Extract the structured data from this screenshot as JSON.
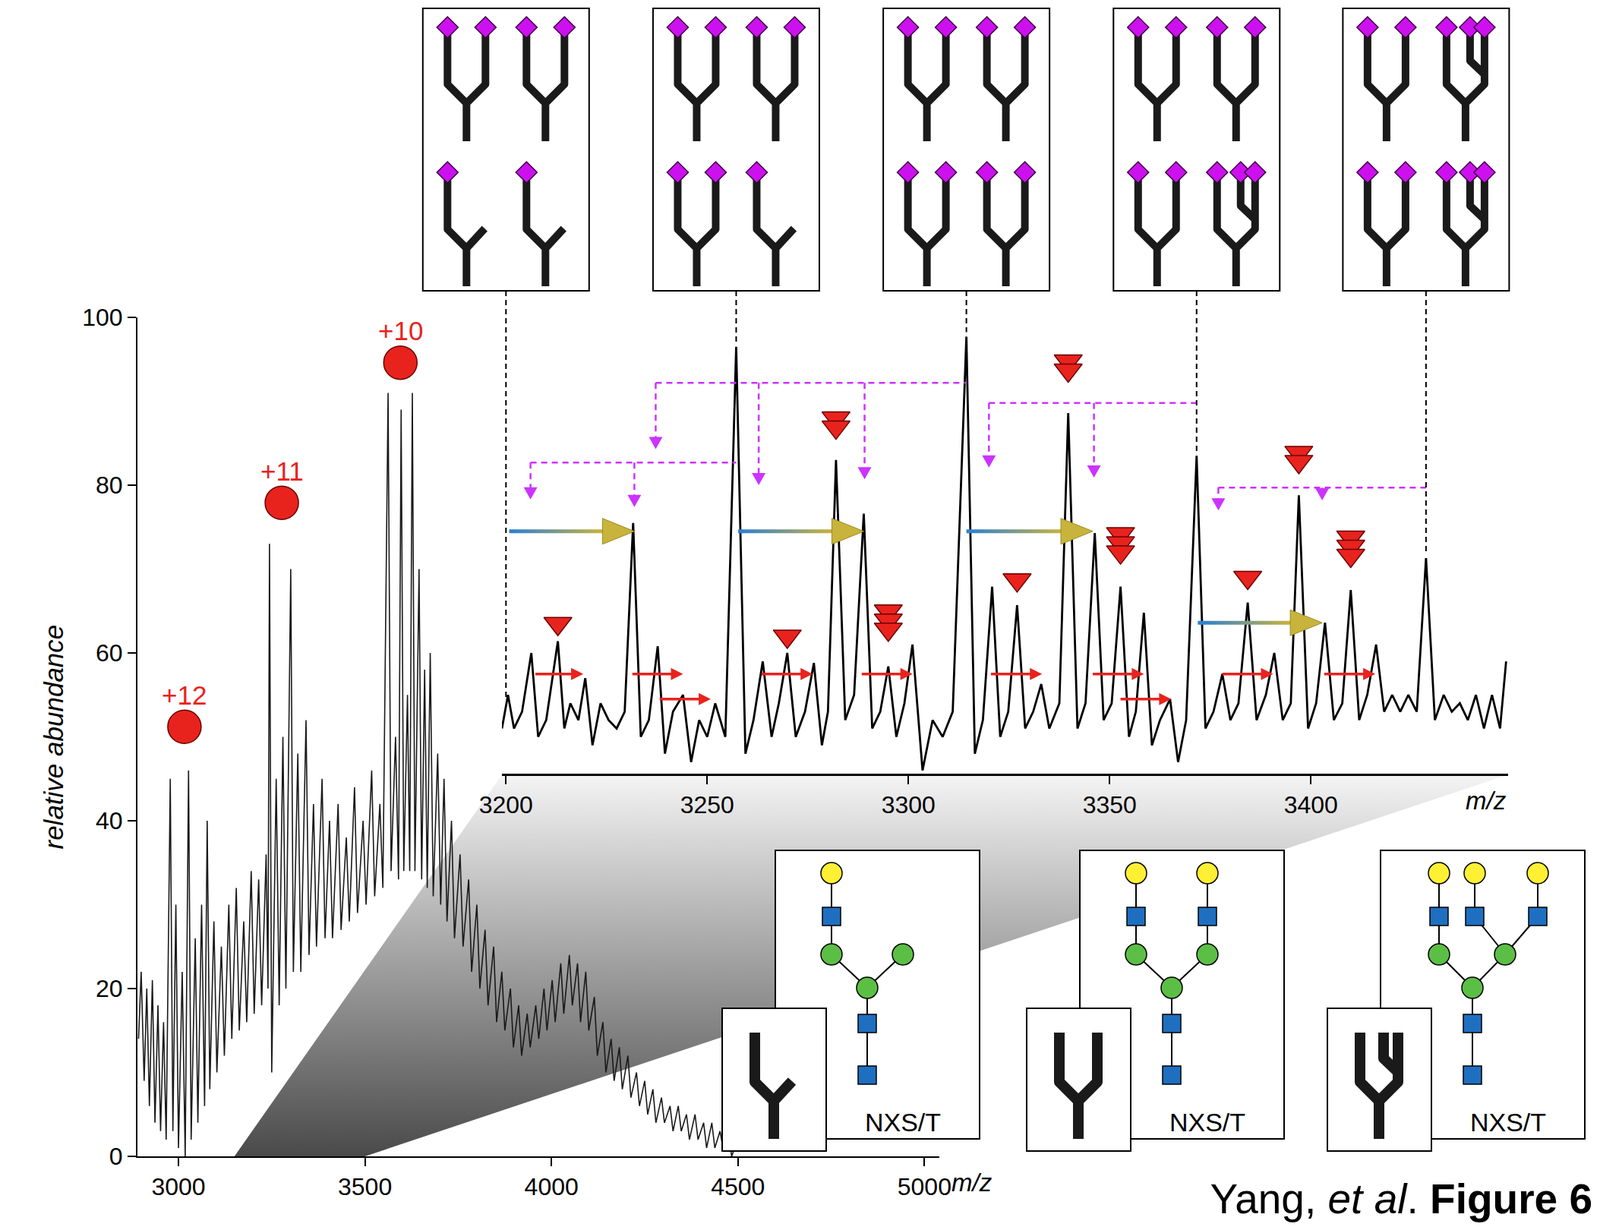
{
  "chart_data": [
    {
      "type": "line",
      "color": "#1a1a1a",
      "x": [
        2893,
        2900,
        2908,
        2915,
        2922,
        2930,
        2937,
        2945,
        2952,
        2960,
        2967,
        2978,
        2985,
        2993,
        3000,
        3010,
        3018,
        3027,
        3034,
        3045,
        3052,
        3062,
        3070,
        3077,
        3084,
        3095,
        3103,
        3115,
        3123,
        3135,
        3143,
        3155,
        3163,
        3175,
        3183,
        3195,
        3203,
        3215,
        3223,
        3235,
        3240,
        3244,
        3250,
        3262,
        3270,
        3280,
        3288,
        3301,
        3308,
        3320,
        3328,
        3342,
        3350,
        3362,
        3370,
        3385,
        3393,
        3405,
        3413,
        3428,
        3436,
        3450,
        3458,
        3472,
        3480,
        3495,
        3503,
        3518,
        3526,
        3540,
        3548,
        3562,
        3570,
        3582,
        3590,
        3597,
        3604,
        3614,
        3620,
        3627,
        3634,
        3645,
        3652,
        3660,
        3667,
        3675,
        3683,
        3695,
        3703,
        3712,
        3720,
        3732,
        3740,
        3755,
        3763,
        3778,
        3786,
        3800,
        3808,
        3822,
        3830,
        3845,
        3853,
        3867,
        3875,
        3890,
        3898,
        3912,
        3920,
        3935,
        3943,
        3958,
        3966,
        3980,
        3988,
        4002,
        4010,
        4025,
        4033,
        4048,
        4056,
        4070,
        4078,
        4092,
        4100,
        4115,
        4123,
        4138,
        4146,
        4160,
        4168,
        4182,
        4190,
        4205,
        4213,
        4228,
        4236,
        4250,
        4258,
        4272,
        4280,
        4295,
        4303,
        4318,
        4326,
        4340,
        4348,
        4362,
        4370,
        4385,
        4393,
        4408,
        4416,
        4430,
        4438,
        4452,
        4460,
        4475,
        4483,
        4500
      ],
      "values": [
        14,
        22,
        9,
        20,
        6,
        21,
        4,
        18,
        3,
        16,
        2,
        45,
        3,
        30,
        1,
        22,
        0,
        46,
        2,
        26,
        4,
        30,
        6,
        40,
        8,
        28,
        10,
        25,
        12,
        30,
        14,
        32,
        15,
        28,
        16,
        34,
        17,
        33,
        18,
        36,
        20,
        73,
        10,
        45,
        18,
        50,
        20,
        70,
        22,
        48,
        22,
        52,
        24,
        42,
        25,
        45,
        26,
        40,
        26,
        42,
        27,
        38,
        28,
        44,
        29,
        40,
        30,
        46,
        31,
        42,
        32,
        91,
        34,
        50,
        33,
        89,
        34,
        55,
        34,
        91,
        34,
        70,
        33,
        58,
        32,
        60,
        31,
        48,
        30,
        45,
        28,
        40,
        26,
        36,
        25,
        33,
        22,
        30,
        20,
        27,
        18,
        25,
        16,
        22,
        15,
        20,
        13,
        18,
        12,
        17,
        13,
        18,
        14,
        20,
        15,
        21,
        16,
        23,
        17,
        24,
        18,
        23,
        16,
        22,
        15,
        19,
        12,
        16,
        10,
        14,
        9,
        13,
        8,
        12,
        7,
        10,
        6,
        9,
        5,
        8,
        4,
        7,
        4,
        6,
        3,
        6,
        3,
        5,
        2,
        5,
        2,
        4,
        1,
        4,
        1,
        3,
        1,
        3,
        0,
        2
      ],
      "xlim": [
        2890,
        5040
      ],
      "xticks": [
        3000,
        3500,
        4000,
        4500,
        5000
      ],
      "ylim": [
        0,
        100
      ],
      "yticks": [
        0,
        20,
        40,
        60,
        80,
        100
      ],
      "grid": false,
      "x_label": "m/z",
      "y_label": "relative abundance",
      "annotations": [
        {
          "x": 3016,
          "y": 51.2,
          "text": "+12",
          "color": "#e8231e"
        },
        {
          "x": 3277,
          "y": 77.9,
          "text": "+11",
          "color": "#e8231e"
        },
        {
          "x": 3595,
          "y": 94.6,
          "text": "+10",
          "color": "#e8231e"
        }
      ],
      "zoom": [
        3150,
        3500
      ]
    },
    {
      "type": "line",
      "color": "#000000",
      "x": [
        3199,
        3200.5,
        3202,
        3204,
        3206.3,
        3208,
        3210,
        3212.9,
        3214.5,
        3216,
        3218,
        3219.7,
        3221.5,
        3223.5,
        3225.5,
        3227.5,
        3229.5,
        3231.6,
        3233.5,
        3235.5,
        3237.7,
        3239.5,
        3241.5,
        3244,
        3246,
        3248,
        3250,
        3252,
        3254.5,
        3257.2,
        3259.5,
        3261.5,
        3263.8,
        3266,
        3267.8,
        3269.9,
        3272,
        3274.3,
        3276.5,
        3278.5,
        3280,
        3282,
        3284.3,
        3286.5,
        3288.9,
        3291,
        3293,
        3295,
        3297,
        3299,
        3301,
        3303.5,
        3306,
        3308.5,
        3311,
        3314.4,
        3316.5,
        3318.5,
        3320.8,
        3322.8,
        3324.8,
        3327,
        3329,
        3331,
        3333,
        3335,
        3337.5,
        3339.7,
        3342,
        3344,
        3346.3,
        3348.5,
        3350.5,
        3352.7,
        3354.8,
        3356.5,
        3358.5,
        3360.5,
        3362.5,
        3365,
        3367,
        3369,
        3371.6,
        3373.8,
        3375.8,
        3378,
        3380,
        3382,
        3384.3,
        3386.5,
        3388.8,
        3390.9,
        3393,
        3395,
        3397,
        3399.3,
        3401.3,
        3403.5,
        3405.7,
        3407.8,
        3409.9,
        3412,
        3414,
        3416.2,
        3418.2,
        3420.2,
        3422.2,
        3424.2,
        3426.3,
        3428.6,
        3430.8,
        3433,
        3435,
        3437,
        3439,
        3441,
        3443,
        3445,
        3447,
        3448.5
      ],
      "values": [
        51,
        55,
        51,
        53,
        60,
        50,
        52,
        61.4,
        51,
        54,
        52,
        57,
        49,
        54,
        52,
        51,
        53,
        75.5,
        50,
        52,
        60.8,
        48,
        53,
        55,
        47,
        52,
        50,
        54,
        50,
        96.5,
        48,
        52,
        59,
        50,
        54,
        60,
        50,
        53,
        58.8,
        49,
        53,
        83,
        52,
        55,
        76.6,
        51,
        53,
        58.4,
        50,
        54,
        61,
        46,
        52,
        50,
        53,
        97.7,
        48,
        52,
        67.9,
        50,
        53,
        65.7,
        51,
        53,
        56.3,
        51,
        54,
        88.6,
        51,
        54,
        74.3,
        52,
        54,
        67.9,
        50,
        53,
        64.8,
        49,
        52,
        54.5,
        47,
        52,
        83.5,
        51,
        53,
        57.5,
        52,
        54,
        66,
        52,
        55,
        60,
        52,
        54,
        78.8,
        51,
        54,
        63.6,
        52,
        54,
        67.5,
        52,
        55,
        61,
        53,
        55,
        53,
        55,
        53,
        71.3,
        52,
        55,
        53,
        54,
        52,
        55,
        51,
        55,
        51,
        59
      ],
      "xlim": [
        3199,
        3449
      ],
      "xticks": [
        3200,
        3250,
        3300,
        3350,
        3400
      ],
      "x_label": "m/z",
      "markers": [
        {
          "x": 3212.9,
          "y": 63.5,
          "count": 1
        },
        {
          "x": 3269.9,
          "y": 62.0,
          "count": 1
        },
        {
          "x": 3282,
          "y": 88,
          "count": 2
        },
        {
          "x": 3295,
          "y": 65,
          "count": 3
        },
        {
          "x": 3327,
          "y": 68.7,
          "count": 1
        },
        {
          "x": 3339.7,
          "y": 94.8,
          "count": 2
        },
        {
          "x": 3352.7,
          "y": 74.2,
          "count": 3
        },
        {
          "x": 3384.3,
          "y": 69,
          "count": 1
        },
        {
          "x": 3397,
          "y": 83.9,
          "count": 2
        },
        {
          "x": 3409.9,
          "y": 73.8,
          "count": 3
        }
      ],
      "glycoforms": [
        {
          "x": 3200,
          "y": 54,
          "antennae": [
            2,
            2,
            1,
            1
          ]
        },
        {
          "x": 3257.2,
          "y": 96.5,
          "antennae": [
            2,
            2,
            2,
            1
          ]
        },
        {
          "x": 3314.4,
          "y": 97.7,
          "antennae": [
            2,
            2,
            2,
            2
          ]
        },
        {
          "x": 3371.6,
          "y": 83.5,
          "antennae": [
            2,
            2,
            2,
            3
          ]
        },
        {
          "x": 3428.6,
          "y": 71.3,
          "antennae": [
            2,
            3,
            2,
            3
          ]
        }
      ],
      "brackets": [
        {
          "x": 3257.2,
          "y": 82.7,
          "targets": [
            {
              "x": 3206.1,
              "y": 78.3
            },
            {
              "x": 3231.9,
              "y": 77.4
            }
          ]
        },
        {
          "x": 3314.4,
          "y": 92.2,
          "targets": [
            {
              "x": 3237.2,
              "y": 84.3
            },
            {
              "x": 3262.8,
              "y": 80
            },
            {
              "x": 3289.1,
              "y": 80.7
            }
          ]
        },
        {
          "x": 3371.6,
          "y": 89.8,
          "targets": [
            {
              "x": 3320,
              "y": 82.1
            },
            {
              "x": 3346.1,
              "y": 80.9
            }
          ]
        },
        {
          "x": 3428.6,
          "y": 79.7,
          "targets": [
            {
              "x": 3377,
              "y": 77
            },
            {
              "x": 3402.8,
              "y": 78.2
            }
          ]
        }
      ],
      "transfers": [
        {
          "x0": 3200.8,
          "x1": 3231.9,
          "y": 74.5
        },
        {
          "x0": 3257.7,
          "x1": 3288.9,
          "y": 74.5
        },
        {
          "x0": 3314.4,
          "x1": 3345.8,
          "y": 74.5
        },
        {
          "x0": 3371.9,
          "x1": 3402.8,
          "y": 63.6
        }
      ],
      "shifts": [
        {
          "x0": 3207.3,
          "x1": 3219.2,
          "y": 57.5
        },
        {
          "x0": 3231.4,
          "x1": 3244,
          "y": 57.5
        },
        {
          "x0": 3238.2,
          "x1": 3250.9,
          "y": 54.5
        },
        {
          "x0": 3263.5,
          "x1": 3276.2,
          "y": 57.5
        },
        {
          "x0": 3288.4,
          "x1": 3301,
          "y": 57.5
        },
        {
          "x0": 3320.5,
          "x1": 3333.2,
          "y": 57.5
        },
        {
          "x0": 3345.8,
          "x1": 3358.5,
          "y": 57.5
        },
        {
          "x0": 3352.7,
          "x1": 3365.3,
          "y": 54.5
        },
        {
          "x0": 3378,
          "x1": 3390.6,
          "y": 57.5
        },
        {
          "x0": 3403.3,
          "x1": 3416,
          "y": 57.5
        }
      ]
    }
  ],
  "structures": [
    {
      "antennae": 1,
      "label": "NXS/T"
    },
    {
      "antennae": 2,
      "label": "NXS/T"
    },
    {
      "antennae": 3,
      "label": "NXS/T"
    }
  ],
  "caption": [
    {
      "text": "Yang, "
    },
    {
      "text": "et al",
      "font": "italic"
    },
    {
      "text": ". "
    },
    {
      "text": "Figure 6",
      "font": "bold"
    }
  ]
}
